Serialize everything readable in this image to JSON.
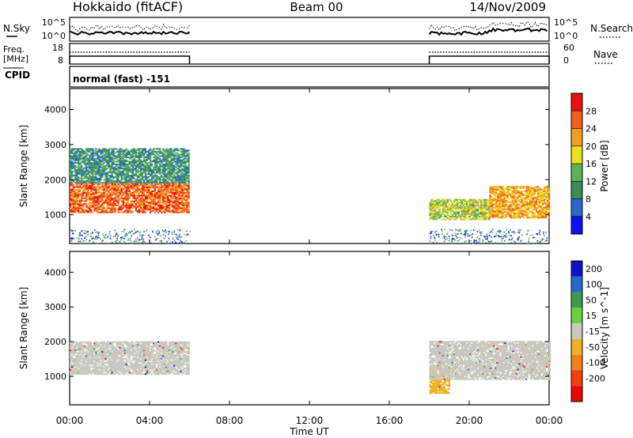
{
  "header": {
    "site": "Hokkaido (fitACF)",
    "beam": "Beam 00",
    "date": "14/Nov/2009"
  },
  "noise_panel": {
    "left_label": "N.Sky",
    "right_label": "N.Search",
    "left_ticks": [
      "10^5",
      "10^0"
    ],
    "right_ticks": [
      "10^5",
      "10^0"
    ]
  },
  "freq_panel": {
    "left_label_1": "Freq.",
    "left_label_2": "[MHz]",
    "left_ticks": [
      "18",
      "8"
    ],
    "right_label": "Nave",
    "right_ticks": [
      "60",
      "0"
    ]
  },
  "cpid_label": "CPID",
  "mode_text": "normal (fast) -151",
  "y_axis": {
    "label": "Slant Range [km]",
    "ticks": [
      "1000",
      "2000",
      "3000",
      "4000"
    ]
  },
  "x_axis": {
    "label": "Time UT",
    "ticks": [
      "00:00",
      "04:00",
      "08:00",
      "12:00",
      "16:00",
      "20:00",
      "00:00"
    ]
  },
  "power_bar": {
    "label": "Power [dB]",
    "ticks": [
      "4",
      "8",
      "12",
      "16",
      "20",
      "24",
      "28"
    ],
    "colors": [
      "#1010f0",
      "#2868c8",
      "#3c8c5a",
      "#5ab45a",
      "#e8e020",
      "#f0a020",
      "#f06020",
      "#e81010"
    ]
  },
  "velocity_bar": {
    "label": "Velocity [m s^-1]",
    "ticks": [
      "200",
      "100",
      "50",
      "15",
      "-15",
      "-50",
      "-100",
      "-200"
    ],
    "colors": [
      "#1010c8",
      "#2868c8",
      "#3c9a4a",
      "#6ad040",
      "#c8c8c0",
      "#f0b020",
      "#f08020",
      "#f04010",
      "#e80808"
    ]
  },
  "chart_data": {
    "type": "heatmap",
    "title": "Hokkaido (fitACF) Beam 00 14/Nov/2009",
    "xlabel": "Time UT",
    "ylabel": "Slant Range [km]",
    "xlim": [
      "00:00",
      "24:00"
    ],
    "ylim": [
      180,
      4600
    ],
    "data_intervals_ut": [
      [
        "00:00",
        "06:00"
      ],
      [
        "18:00",
        "24:00"
      ]
    ],
    "panels": [
      {
        "name": "Power",
        "unit": "dB",
        "scale": [
          0,
          30
        ],
        "regions": [
          {
            "t": [
              0.0,
              6.0
            ],
            "range_km": [
              1050,
              1900
            ],
            "level_db": 24
          },
          {
            "t": [
              0.0,
              6.0
            ],
            "range_km": [
              1900,
              2900
            ],
            "level_db": 10
          },
          {
            "t": [
              18.0,
              21.0
            ],
            "range_km": [
              850,
              1450
            ],
            "level_db": 16
          },
          {
            "t": [
              21.0,
              24.0
            ],
            "range_km": [
              900,
              1800
            ],
            "level_db": 20
          }
        ]
      },
      {
        "name": "Velocity",
        "unit": "m s^-1",
        "scale": [
          -200,
          200
        ],
        "regions": [
          {
            "t": [
              0.0,
              6.0
            ],
            "range_km": [
              1050,
              2000
            ],
            "level_ms": 0
          },
          {
            "t": [
              18.0,
              19.0
            ],
            "range_km": [
              500,
              1300
            ],
            "level_ms": -60
          },
          {
            "t": [
              18.0,
              24.0
            ],
            "range_km": [
              900,
              2000
            ],
            "level_ms": 0
          }
        ]
      }
    ],
    "noise": {
      "sky_range": [
        "10^0",
        "10^5"
      ],
      "search_range": [
        "10^0",
        "10^5"
      ]
    },
    "frequency_mhz": 10,
    "nave_level": 40
  }
}
